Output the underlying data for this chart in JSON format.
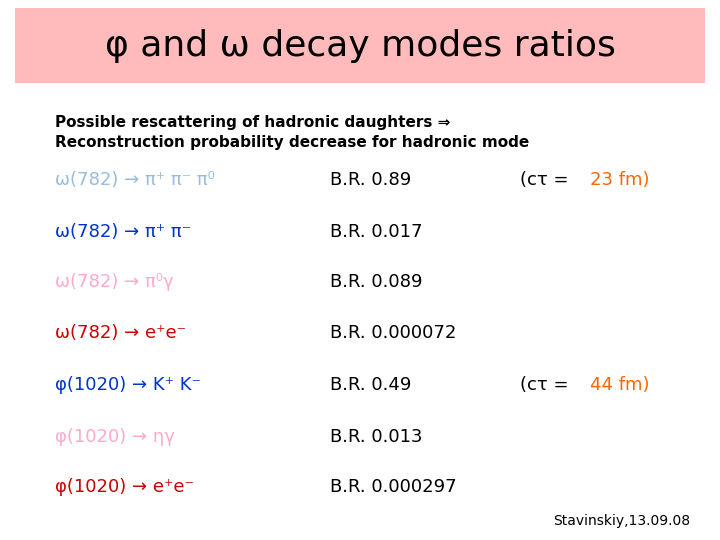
{
  "title": "φ and ω decay modes ratios",
  "title_bg": "#FFBBBB",
  "bg_color": "#FFFFFF",
  "bold_text_line1": "Possible rescattering of hadronic daughters ⇒",
  "bold_text_line2": "Reconstruction probability decrease for hadronic mode",
  "rows": [
    {
      "label": "ω(782) → π⁺ π⁻ π⁰",
      "label_color": "#99BBDD",
      "br_text": "B.R. 0.89",
      "extra_prefix": "(cτ = ",
      "extra_num": "23 fm)",
      "extra_color": "#FF6600"
    },
    {
      "label": "ω(782) → π⁺ π⁻",
      "label_color": "#0033CC",
      "br_text": "B.R. 0.017",
      "extra_prefix": "",
      "extra_num": "",
      "extra_color": ""
    },
    {
      "label": "ω(782) → π⁰γ",
      "label_color": "#FFAACC",
      "br_text": "B.R. 0.089",
      "extra_prefix": "",
      "extra_num": "",
      "extra_color": ""
    },
    {
      "label": "ω(782) → e⁺e⁻",
      "label_color": "#CC0000",
      "br_text": "B.R. 0.000072",
      "extra_prefix": "",
      "extra_num": "",
      "extra_color": ""
    },
    {
      "label": "φ(1020) → K⁺ K⁻",
      "label_color": "#0033CC",
      "br_text": "B.R. 0.49",
      "extra_prefix": "(cτ = ",
      "extra_num": "44 fm)",
      "extra_color": "#FF6600"
    },
    {
      "label": "φ(1020) → ηγ",
      "label_color": "#FFAACC",
      "br_text": "B.R. 0.013",
      "extra_prefix": "",
      "extra_num": "",
      "extra_color": ""
    },
    {
      "label": "φ(1020) → e⁺e⁻",
      "label_color": "#CC0000",
      "br_text": "B.R. 0.000297",
      "extra_prefix": "",
      "extra_num": "",
      "extra_color": ""
    }
  ],
  "footer": "Stavinskiy,13.09.08"
}
